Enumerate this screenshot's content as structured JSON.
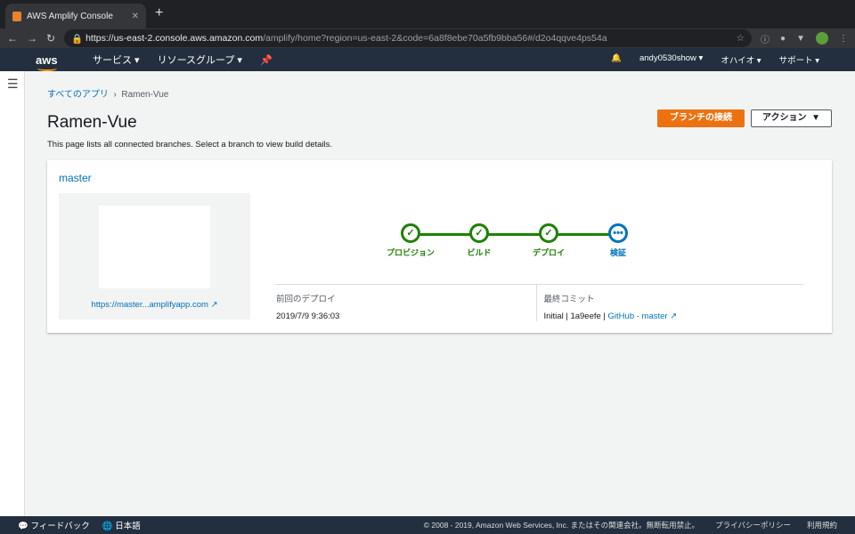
{
  "browser": {
    "tab_title": "AWS Amplify Console",
    "url_host": "https://us-east-2.console.aws.amazon.com",
    "url_path": "/amplify/home?region=us-east-2&code=6a8f8ebe70a5fb9bba56#/d2o4qqve4ps54a"
  },
  "nav": {
    "logo": "aws",
    "services": "サービス",
    "resource_groups": "リソースグループ",
    "user": "andy0530show",
    "region": "オハイオ",
    "support": "サポート"
  },
  "breadcrumb": {
    "root": "すべてのアプリ",
    "current": "Ramen-Vue"
  },
  "page": {
    "title": "Ramen-Vue",
    "description": "This page lists all connected branches. Select a branch to view build details.",
    "connect_branch": "ブランチの接続",
    "actions": "アクション"
  },
  "branch": {
    "name": "master",
    "preview_link": "https://master...amplifyapp.com",
    "steps": [
      {
        "label": "プロビジョン",
        "status": "done"
      },
      {
        "label": "ビルド",
        "status": "done"
      },
      {
        "label": "デプロイ",
        "status": "done"
      },
      {
        "label": "検証",
        "status": "in-progress"
      }
    ],
    "last_deploy_label": "前回のデプロイ",
    "last_deploy": "2019/7/9 9:36:03",
    "last_commit_label": "最終コミット",
    "commit_msg": "Initial",
    "commit_id": "1a9eefe",
    "commit_link": "GitHub - master"
  },
  "footer": {
    "feedback": "フィードバック",
    "language": "日本語",
    "copyright": "© 2008 - 2019, Amazon Web Services, Inc. またはその関連会社。無断転用禁止。",
    "privacy": "プライバシーポリシー",
    "terms": "利用規約"
  },
  "colors": {
    "accent": "#ec7211",
    "success": "#1d8102",
    "link": "#0073bb",
    "nav": "#232f3e"
  }
}
